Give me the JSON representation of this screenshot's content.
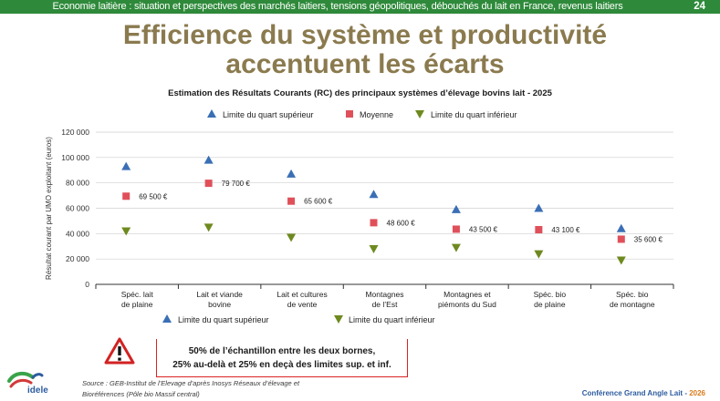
{
  "header": {
    "topbar_text": "Economie laitière : situation et perspectives des marchés laitiers, tensions géopolitiques, débouchés du lait en France, revenus laitiers",
    "page_number": "24"
  },
  "slide": {
    "title_line1": "Efficience du système et productivité",
    "title_line2": "accentuent les écarts"
  },
  "colors": {
    "topbar": "#2e8a3a",
    "title": "#8a7a4e",
    "upper": "#3a6fb5",
    "mean": "#e0505a",
    "lower": "#6e8a1f",
    "warning": "#d22222"
  },
  "chart_data": {
    "type": "scatter",
    "title": "Estimation des Résultats Courants (RC) des principaux systèmes d’élevage bovins lait - 2025",
    "ylabel": "Résultat courant par UMO exploitant (euros)",
    "ylim": [
      0,
      120000
    ],
    "yticks": [
      0,
      20000,
      40000,
      60000,
      80000,
      100000,
      120000
    ],
    "ytick_labels": [
      "0",
      "20 000",
      "40 000",
      "60 000",
      "80 000",
      "100 000",
      "120 000"
    ],
    "grid": "horizontal",
    "legend_position": "top",
    "categories": [
      [
        "Spéc. lait",
        "de plaine"
      ],
      [
        "Lait et viande",
        "bovine"
      ],
      [
        "Lait et cultures",
        "de vente"
      ],
      [
        "Montagnes",
        "de l’Est"
      ],
      [
        "Montagnes et",
        "piémonts du Sud"
      ],
      [
        "Spéc. bio",
        "de plaine"
      ],
      [
        "Spéc. bio",
        "de montagne"
      ]
    ],
    "series": [
      {
        "name": "Limite du quart supérieur",
        "marker": "triangle-up",
        "values": [
          93000,
          98000,
          87000,
          71000,
          59000,
          60000,
          44000
        ]
      },
      {
        "name": "Moyenne",
        "marker": "square",
        "values": [
          69500,
          79700,
          65600,
          48600,
          43500,
          43100,
          35600
        ],
        "labels": [
          "69 500 €",
          "79 700 €",
          "65 600 €",
          "48 600 €",
          "43 500 €",
          "43 100 €",
          "35 600 €"
        ]
      },
      {
        "name": "Limite du quart inférieur",
        "marker": "triangle-down",
        "values": [
          42000,
          45000,
          37000,
          28000,
          29000,
          24000,
          19000
        ]
      }
    ],
    "bottom_legend": [
      "Limite du quart supérieur",
      "Limite du quart inférieur"
    ]
  },
  "note": {
    "line1": "50% de l’échantillon entre les deux bornes,",
    "line2": "25% au-delà et 25% en deçà des limites sup. et inf."
  },
  "logo": {
    "text": "idele"
  },
  "source": {
    "line1": "Source : GEB-Institut de l’Elevage d’après Inosys Réseaux d’élevage et",
    "line2": "Bioréférences (Pôle bio Massif central)"
  },
  "footer": {
    "text": "Conférence Grand Angle Lait - ",
    "year": "2026"
  }
}
